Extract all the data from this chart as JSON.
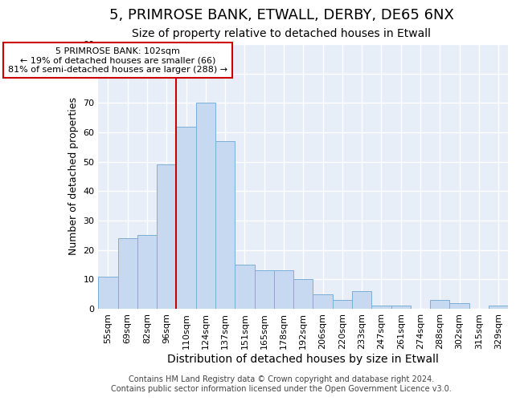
{
  "title": "5, PRIMROSE BANK, ETWALL, DERBY, DE65 6NX",
  "subtitle": "Size of property relative to detached houses in Etwall",
  "xlabel": "Distribution of detached houses by size in Etwall",
  "ylabel": "Number of detached properties",
  "categories": [
    "55sqm",
    "69sqm",
    "82sqm",
    "96sqm",
    "110sqm",
    "124sqm",
    "137sqm",
    "151sqm",
    "165sqm",
    "178sqm",
    "192sqm",
    "206sqm",
    "220sqm",
    "233sqm",
    "247sqm",
    "261sqm",
    "274sqm",
    "288sqm",
    "302sqm",
    "315sqm",
    "329sqm"
  ],
  "values": [
    11,
    24,
    25,
    49,
    62,
    70,
    57,
    15,
    13,
    13,
    10,
    5,
    3,
    6,
    1,
    1,
    0,
    3,
    2,
    0,
    1
  ],
  "bar_color": "#c6d9f1",
  "bar_edge_color": "#7bafd4",
  "red_line_x": 4.0,
  "annotation_text": "5 PRIMROSE BANK: 102sqm\n← 19% of detached houses are smaller (66)\n81% of semi-detached houses are larger (288) →",
  "annotation_box_color": "#ffffff",
  "annotation_box_edge": "#cc0000",
  "ylim": [
    0,
    90
  ],
  "yticks": [
    0,
    10,
    20,
    30,
    40,
    50,
    60,
    70,
    80,
    90
  ],
  "footer": "Contains HM Land Registry data © Crown copyright and database right 2024.\nContains public sector information licensed under the Open Government Licence v3.0.",
  "bg_color": "#ffffff",
  "plot_bg_color": "#e8eef8",
  "grid_color": "#ffffff",
  "title_fontsize": 13,
  "subtitle_fontsize": 10,
  "tick_fontsize": 8,
  "ylabel_fontsize": 9,
  "xlabel_fontsize": 10,
  "footer_fontsize": 7
}
